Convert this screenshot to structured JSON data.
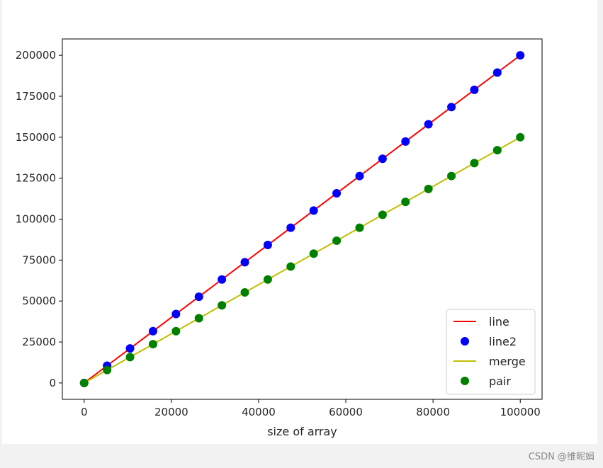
{
  "chart_data": {
    "type": "line",
    "title": "",
    "xlabel": "size of array",
    "ylabel": "",
    "xlim": [
      -5000,
      105000
    ],
    "ylim": [
      -10000,
      210000
    ],
    "xticks": [
      0,
      20000,
      40000,
      60000,
      80000,
      100000
    ],
    "yticks": [
      0,
      25000,
      50000,
      75000,
      100000,
      125000,
      150000,
      175000,
      200000
    ],
    "grid": false,
    "legend_position": "lower-right",
    "x": [
      0,
      5263,
      10526,
      15789,
      21053,
      26316,
      31579,
      36842,
      42105,
      47368,
      52632,
      57895,
      63158,
      68421,
      73684,
      78947,
      84211,
      89474,
      94737,
      100000
    ],
    "series": [
      {
        "name": "line",
        "style": "line",
        "color": "#ff0000",
        "values": [
          0,
          10526,
          21053,
          31579,
          42105,
          52632,
          63158,
          73684,
          84211,
          94737,
          105263,
          115789,
          126316,
          136842,
          147368,
          157895,
          168421,
          178947,
          189474,
          200000
        ]
      },
      {
        "name": "line2",
        "style": "markers",
        "color": "#0000ff",
        "values": [
          0,
          10526,
          21053,
          31579,
          42105,
          52632,
          63158,
          73684,
          84211,
          94737,
          105263,
          115789,
          126316,
          136842,
          147368,
          157895,
          168421,
          178947,
          189474,
          200000
        ]
      },
      {
        "name": "merge",
        "style": "line",
        "color": "#bfbf00",
        "values": [
          0,
          7895,
          15789,
          23684,
          31579,
          39474,
          47368,
          55263,
          63158,
          71053,
          78947,
          86842,
          94737,
          102632,
          110526,
          118421,
          126316,
          134211,
          142105,
          150000
        ]
      },
      {
        "name": "pair",
        "style": "markers",
        "color": "#008000",
        "values": [
          0,
          7895,
          15789,
          23684,
          31579,
          39474,
          47368,
          55263,
          63158,
          71053,
          78947,
          86842,
          94737,
          102632,
          110526,
          118421,
          126316,
          134211,
          142105,
          150000
        ]
      }
    ]
  },
  "watermark": "CSDN @维昵娟"
}
